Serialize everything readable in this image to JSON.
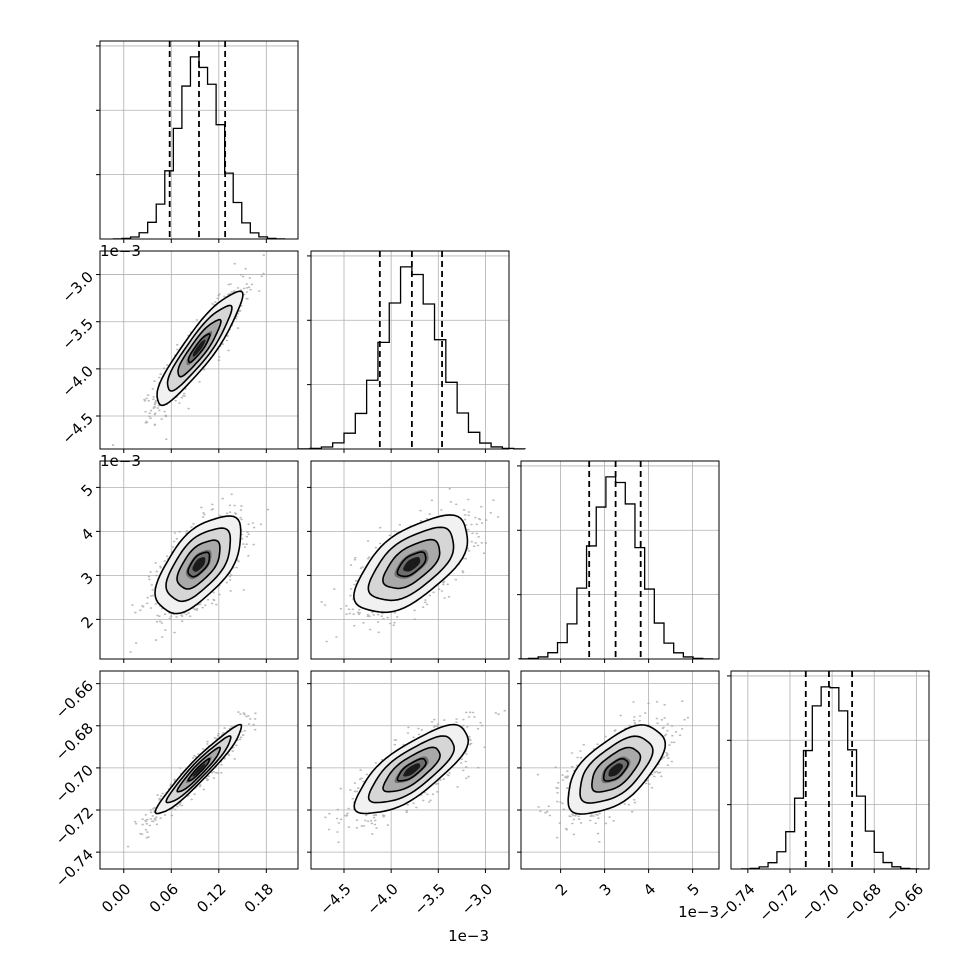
{
  "chart_data": {
    "type": "corner",
    "description_of_panels": "lower-triangle 4x4 grid: diagonal = 1D histograms with 16/50/84 percentile dashed lines, off-diagonal = 2D density with contours and scatter",
    "parameters": [
      {
        "range": [
          -0.03,
          0.22
        ],
        "ticks": [
          0.0,
          0.06,
          0.12,
          0.18
        ],
        "tick_labels": [
          "0.00",
          "0.06",
          "0.12",
          "0.18"
        ],
        "offset_text": "",
        "mean": 0.095,
        "std": 0.027,
        "quantiles": [
          0.058,
          0.095,
          0.128
        ]
      },
      {
        "range": [
          -4.85,
          -2.75
        ],
        "ticks": [
          -4.5,
          -4.0,
          -3.5,
          -3.0
        ],
        "tick_labels": [
          "−4.5",
          "−4.0",
          "−3.5",
          "−3.0"
        ],
        "offset_text": "1e−3",
        "mean": -3.78,
        "std": 0.3,
        "quantiles": [
          -4.12,
          -3.78,
          -3.46
        ]
      },
      {
        "range": [
          1.1,
          5.6
        ],
        "ticks": [
          2,
          3,
          4,
          5
        ],
        "tick_labels": [
          "2",
          "3",
          "4",
          "5"
        ],
        "offset_text": "1e−3",
        "mean": 3.25,
        "std": 0.55,
        "quantiles": [
          2.65,
          3.25,
          3.82
        ]
      },
      {
        "range": [
          -0.748,
          -0.654
        ],
        "ticks": [
          -0.74,
          -0.72,
          -0.7,
          -0.68,
          -0.66
        ],
        "tick_labels": [
          "−0.74",
          "−0.72",
          "−0.70",
          "−0.68",
          "−0.66"
        ],
        "offset_text": "",
        "mean": -0.701,
        "std": 0.0105,
        "quantiles": [
          -0.7125,
          -0.7015,
          -0.6905
        ]
      }
    ],
    "correlations": {
      "1-0": 0.9,
      "2-0": 0.6,
      "2-1": 0.6,
      "3-0": 0.95,
      "3-1": 0.75,
      "3-2": 0.6
    },
    "histogram_bins": 20,
    "colors": {
      "line": "#000000",
      "grid": "#b0b0b0",
      "scatter": "#9e9e9e"
    }
  }
}
